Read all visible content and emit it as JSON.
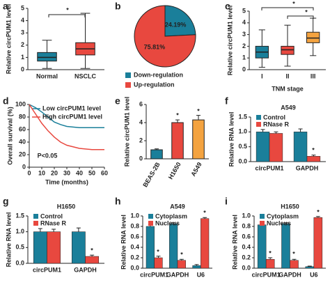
{
  "chart_data": [
    {
      "type": "box",
      "panel": "a",
      "ylabel": "Relative circPUM1 level",
      "categories": [
        "Normal",
        "NSCLC"
      ],
      "boxes": [
        {
          "whislo": 0.1,
          "q1": 0.7,
          "med": 1.0,
          "q3": 1.4,
          "whishi": 2.4
        },
        {
          "whislo": 0.1,
          "q1": 1.2,
          "med": 1.7,
          "q3": 2.2,
          "whishi": 4.6
        }
      ],
      "colors": [
        "#1a7f9a",
        "#e8483f"
      ],
      "ylim": [
        0,
        5
      ],
      "yticks": [
        0,
        1,
        2,
        3,
        4,
        5
      ],
      "annotations": [
        "*"
      ]
    },
    {
      "type": "pie",
      "panel": "b",
      "categories": [
        "Down-regulation",
        "Up-regulation"
      ],
      "values": [
        24.19,
        75.81
      ],
      "value_labels": [
        "24.19%",
        "75.81%"
      ],
      "colors": [
        "#1a7f9a",
        "#e8483f"
      ]
    },
    {
      "type": "box",
      "panel": "c",
      "ylabel": "Relative circPUM1 level",
      "xlabel": "TNM stage",
      "categories": [
        "I",
        "II",
        "III"
      ],
      "boxes": [
        {
          "whislo": 0.2,
          "q1": 1.0,
          "med": 1.5,
          "q3": 2.0,
          "whishi": 3.4
        },
        {
          "whislo": 0.3,
          "q1": 1.3,
          "med": 1.7,
          "q3": 2.0,
          "whishi": 3.8
        },
        {
          "whislo": 1.2,
          "q1": 2.3,
          "med": 2.7,
          "q3": 3.2,
          "whishi": 4.4
        }
      ],
      "colors": [
        "#1a7f9a",
        "#e8483f",
        "#f4a340"
      ],
      "ylim": [
        0,
        5
      ],
      "yticks": [
        0,
        1,
        2,
        3,
        4,
        5
      ],
      "annotations": [
        "*",
        "*"
      ]
    },
    {
      "type": "line",
      "panel": "d",
      "ylabel": "Overall survival (%)",
      "xlabel": "Time (months)",
      "x": [
        0,
        5,
        10,
        15,
        20,
        25,
        30,
        40,
        50,
        60
      ],
      "series": [
        {
          "name": "Low circPUM1 level",
          "color": "#1a7f9a",
          "values": [
            100,
            95,
            88,
            80,
            72,
            68,
            65,
            63,
            63,
            63
          ]
        },
        {
          "name": "High circPUM1 level",
          "color": "#e8483f",
          "values": [
            100,
            85,
            70,
            58,
            48,
            40,
            35,
            30,
            28,
            28
          ]
        }
      ],
      "xlim": [
        0,
        60
      ],
      "xticks": [
        0,
        10,
        20,
        30,
        40,
        50,
        60
      ],
      "ylim": [
        0,
        100
      ],
      "yticks": [
        0,
        20,
        40,
        60,
        80,
        100
      ],
      "annotations": [
        "P<0.05"
      ]
    },
    {
      "type": "bar",
      "panel": "e",
      "ylabel": "Relative circPUM1 level",
      "categories": [
        "BEAS-2B",
        "H1650",
        "A549"
      ],
      "values": [
        1.0,
        4.0,
        4.3
      ],
      "errors": [
        0.1,
        0.3,
        0.5
      ],
      "colors": [
        "#1a7f9a",
        "#e8483f",
        "#f4a340"
      ],
      "ylim": [
        0,
        6
      ],
      "yticks": [
        0,
        2,
        4,
        6
      ],
      "annotations": [
        "*",
        "*"
      ]
    },
    {
      "type": "grouped",
      "panel": "f",
      "title": "A549",
      "ylabel": "Relative RNA level",
      "categories": [
        "circPUM1",
        "GAPDH"
      ],
      "series": [
        {
          "name": "Control",
          "color": "#1a7f9a",
          "values": [
            1.0,
            1.0
          ],
          "errors": [
            0.08,
            0.1
          ]
        },
        {
          "name": "RNase R",
          "color": "#e8483f",
          "values": [
            0.95,
            0.18
          ],
          "errors": [
            0.05,
            0.04
          ]
        }
      ],
      "ylim": [
        0,
        1.5
      ],
      "yticks": [
        {
          "value": 0,
          "label": "0.0"
        },
        0.5,
        {
          "value": 1,
          "label": "1.0"
        },
        1.5
      ],
      "annotations": [
        "*"
      ]
    },
    {
      "type": "grouped",
      "panel": "g",
      "title": "H1650",
      "ylabel": "Relative RNA level",
      "categories": [
        "circPUM1",
        "GAPDH"
      ],
      "series": [
        {
          "name": "Control",
          "color": "#1a7f9a",
          "values": [
            1.0,
            1.0
          ],
          "errors": [
            0.1,
            0.12
          ]
        },
        {
          "name": "RNase R",
          "color": "#e8483f",
          "values": [
            1.0,
            0.22
          ],
          "errors": [
            0.08,
            0.04
          ]
        }
      ],
      "ylim": [
        0,
        1.5
      ],
      "yticks": [
        {
          "value": 0,
          "label": "0.0"
        },
        0.5,
        {
          "value": 1,
          "label": "1.0"
        },
        1.5
      ],
      "annotations": [
        "*"
      ]
    },
    {
      "type": "grouped",
      "panel": "h",
      "title": "A549",
      "ylabel": "Relative RNA level",
      "categories": [
        "circPUM1",
        "GAPDH",
        "U6"
      ],
      "series": [
        {
          "name": "Cytoplasm",
          "color": "#1a7f9a",
          "values": [
            0.8,
            0.85,
            0.05
          ],
          "errors": [
            0.03,
            0.02,
            0.02
          ]
        },
        {
          "name": "Nucleus",
          "color": "#e8483f",
          "values": [
            0.2,
            0.15,
            0.95
          ],
          "errors": [
            0.03,
            0.02,
            0.02
          ]
        }
      ],
      "ylim": [
        0,
        1
      ],
      "yticks": [
        {
          "value": 0,
          "label": "0.0"
        },
        0.2,
        0.4,
        0.6,
        0.8,
        {
          "value": 1,
          "label": "1.0"
        }
      ],
      "annotations": [
        "*",
        "*",
        "*"
      ]
    },
    {
      "type": "grouped",
      "panel": "i",
      "title": "H1650",
      "ylabel": "Relative RNA level",
      "categories": [
        "circPUM1",
        "GAPDH",
        "U6"
      ],
      "series": [
        {
          "name": "Cytoplasm",
          "color": "#1a7f9a",
          "values": [
            0.83,
            0.85,
            0.03
          ],
          "errors": [
            0.03,
            0.02,
            0.01
          ]
        },
        {
          "name": "Nucleus",
          "color": "#e8483f",
          "values": [
            0.17,
            0.15,
            0.97
          ],
          "errors": [
            0.03,
            0.02,
            0.02
          ]
        }
      ],
      "ylim": [
        0,
        1
      ],
      "yticks": [
        {
          "value": 0,
          "label": "0.0"
        },
        0.2,
        0.4,
        0.6,
        0.8,
        {
          "value": 1,
          "label": "1.0"
        }
      ],
      "annotations": [
        "*",
        "*",
        "*"
      ]
    }
  ]
}
